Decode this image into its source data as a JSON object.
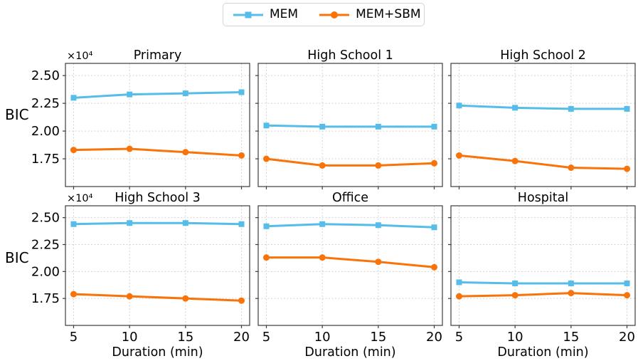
{
  "legend": {
    "entries": [
      {
        "label": "MEM",
        "color": "#56BDE8",
        "marker": "square"
      },
      {
        "label": "MEM+SBM",
        "color": "#F8740A",
        "marker": "circle"
      }
    ]
  },
  "chart_data": {
    "type": "line",
    "x": [
      5,
      10,
      15,
      20
    ],
    "x_tick_labels": [
      "5",
      "10",
      "15",
      "20"
    ],
    "xlabel": "Duration (min)",
    "ylabel": "BIC",
    "y_offset_label": "×10⁴",
    "y_scale_factor": 10000,
    "y_ticks": [
      1.75,
      2.0,
      2.25,
      2.5
    ],
    "y_tick_labels": [
      "1.75",
      "2.00",
      "2.25",
      "2.50"
    ],
    "xlim": [
      4.27,
      20.73
    ],
    "ylim": [
      1.5,
      2.61
    ],
    "grid": true,
    "legend_position": "top-center",
    "panels": [
      {
        "title": "Primary",
        "series": [
          {
            "name": "MEM",
            "values": [
              2.3,
              2.33,
              2.34,
              2.35
            ]
          },
          {
            "name": "MEM+SBM",
            "values": [
              1.83,
              1.84,
              1.81,
              1.78
            ]
          }
        ]
      },
      {
        "title": "High School 1",
        "series": [
          {
            "name": "MEM",
            "values": [
              2.05,
              2.04,
              2.04,
              2.04
            ]
          },
          {
            "name": "MEM+SBM",
            "values": [
              1.75,
              1.69,
              1.69,
              1.71
            ]
          }
        ]
      },
      {
        "title": "High School 2",
        "series": [
          {
            "name": "MEM",
            "values": [
              2.23,
              2.21,
              2.2,
              2.2
            ]
          },
          {
            "name": "MEM+SBM",
            "values": [
              1.78,
              1.73,
              1.67,
              1.66
            ]
          }
        ]
      },
      {
        "title": "High School 3",
        "series": [
          {
            "name": "MEM",
            "values": [
              2.44,
              2.45,
              2.45,
              2.44
            ]
          },
          {
            "name": "MEM+SBM",
            "values": [
              1.79,
              1.77,
              1.75,
              1.73
            ]
          }
        ]
      },
      {
        "title": "Office",
        "series": [
          {
            "name": "MEM",
            "values": [
              2.42,
              2.44,
              2.43,
              2.41
            ]
          },
          {
            "name": "MEM+SBM",
            "values": [
              2.13,
              2.13,
              2.09,
              2.04
            ]
          }
        ]
      },
      {
        "title": "Hospital",
        "series": [
          {
            "name": "MEM",
            "values": [
              1.9,
              1.89,
              1.89,
              1.89
            ]
          },
          {
            "name": "MEM+SBM",
            "values": [
              1.77,
              1.78,
              1.8,
              1.78
            ]
          }
        ]
      }
    ]
  }
}
